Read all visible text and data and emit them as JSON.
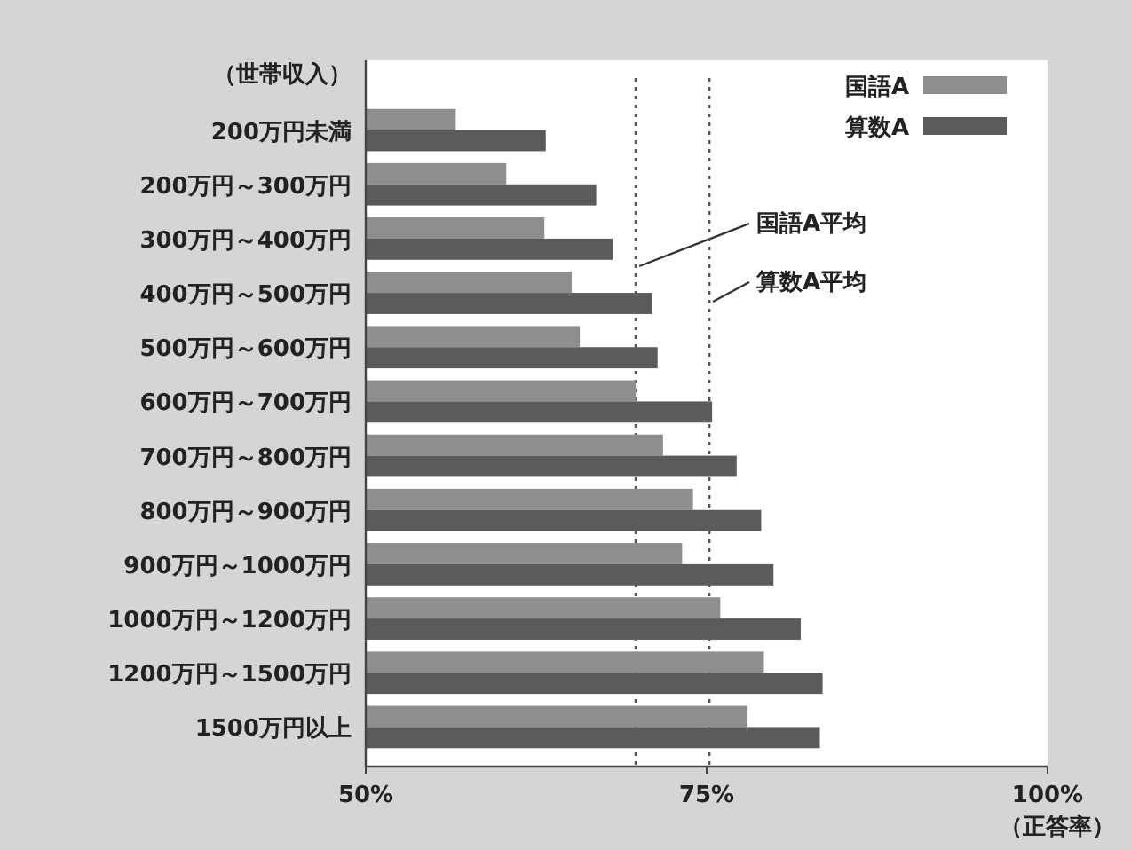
{
  "chart_data": {
    "type": "bar",
    "orientation": "horizontal",
    "ylabel": "（世帯収入）",
    "xlabel": "（正答率）",
    "categories": [
      "200万円未満",
      "200万円～300万円",
      "300万円～400万円",
      "400万円～500万円",
      "500万円～600万円",
      "600万円～700万円",
      "700万円～800万円",
      "800万円～900万円",
      "900万円～1000万円",
      "1000万円～1200万円",
      "1200万円～1500万円",
      "1500万円以上"
    ],
    "series": [
      {
        "name": "国語A",
        "color": "#8e8e8e",
        "values": [
          56.6,
          60.3,
          63.1,
          65.1,
          65.7,
          69.8,
          71.8,
          74.0,
          73.2,
          76.0,
          79.2,
          78.0
        ]
      },
      {
        "name": "算数A",
        "color": "#5b5b5b",
        "values": [
          63.2,
          66.9,
          68.1,
          71.0,
          71.4,
          75.4,
          77.2,
          79.0,
          79.9,
          81.9,
          83.5,
          83.3
        ]
      }
    ],
    "xlim": [
      50,
      100
    ],
    "xticks": [
      {
        "value": 50,
        "label": "50%"
      },
      {
        "value": 75,
        "label": "75%"
      },
      {
        "value": 100,
        "label": "100%"
      }
    ],
    "ref_lines": [
      {
        "axis": "x",
        "value": 69.8,
        "label": "国語A平均",
        "line_style": "dotted"
      },
      {
        "axis": "x",
        "value": 75.2,
        "label": "算数A平均",
        "line_style": "dotted"
      }
    ],
    "legend": "top right",
    "grid": false
  }
}
